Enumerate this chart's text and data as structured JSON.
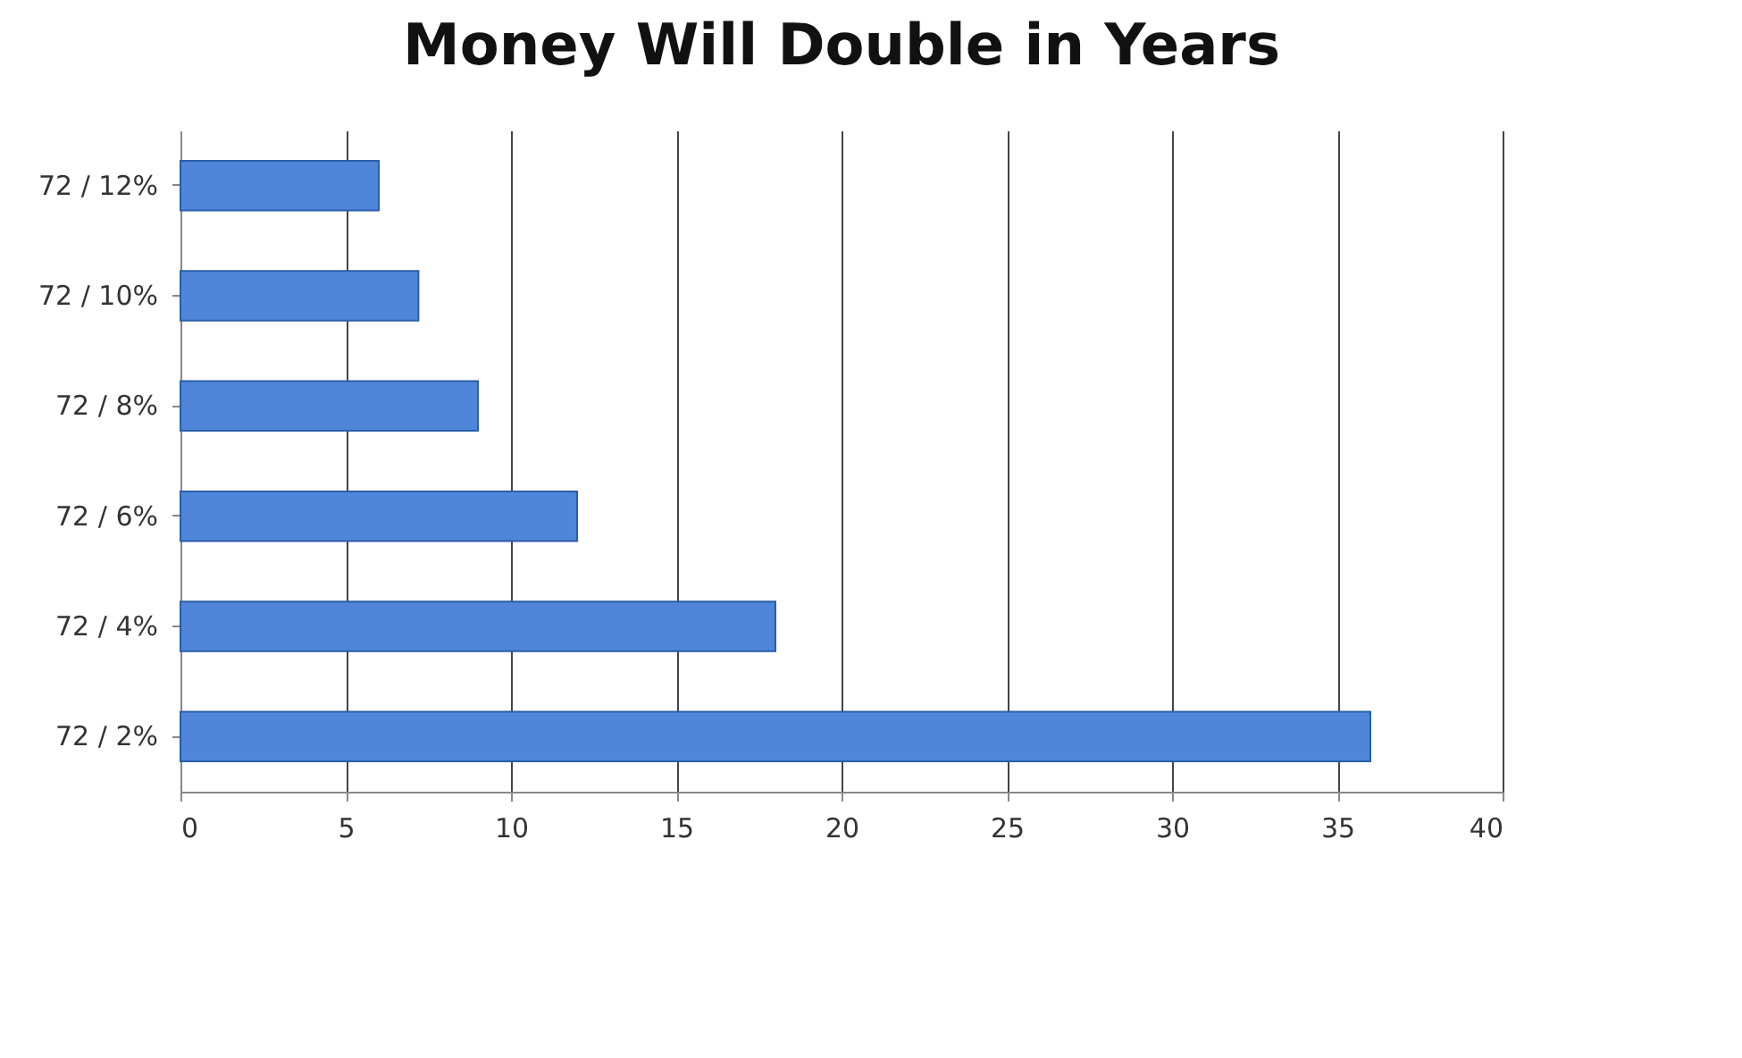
{
  "chart_data": {
    "type": "bar",
    "title": "Money Will Double in Years",
    "orientation": "horizontal",
    "categories": [
      "72 / 12%",
      "72 / 10%",
      "72 / 8%",
      "72 / 6%",
      "72 / 4%",
      "72 / 2%"
    ],
    "values": [
      6,
      7.2,
      9,
      12,
      18,
      36
    ],
    "color": "#4f86d9",
    "xlim": [
      0,
      40
    ],
    "xticks": [
      0,
      5,
      10,
      15,
      20,
      25,
      30,
      35,
      40
    ],
    "grid": "x"
  }
}
